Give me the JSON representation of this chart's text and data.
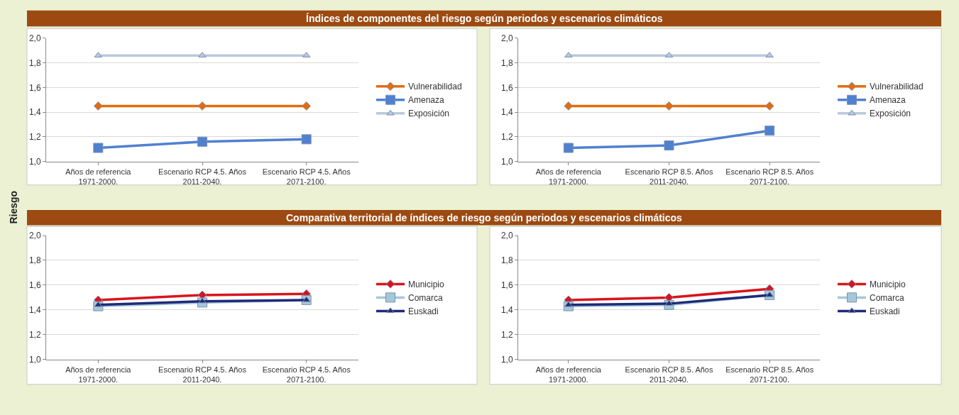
{
  "chart_data": [
    {
      "type": "line",
      "title": "Índices de componentes del riesgo según periodos y escenarios climáticos",
      "ylabel": "Riesgo",
      "categories": [
        "Años de referencia 1971-2000.",
        "Escenario RCP 4.5. Años 2011-2040.",
        "Escenario RCP 4.5. Años 2071-2100."
      ],
      "ylim": [
        1.0,
        2.0
      ],
      "yticks": [
        {
          "value": 1.0,
          "label": "1,0"
        },
        {
          "value": 1.2,
          "label": "1,2"
        },
        {
          "value": 1.4,
          "label": "1,4"
        },
        {
          "value": 1.6,
          "label": "1,6"
        },
        {
          "value": 1.8,
          "label": "1,8"
        },
        {
          "value": 2.0,
          "label": "2,0"
        }
      ],
      "grid": "y",
      "legend": "right",
      "series": [
        {
          "name": "Vulnerabilidad",
          "color": "#e46c0a",
          "marker": "diamond",
          "values": [
            1.45,
            1.45,
            1.45
          ]
        },
        {
          "name": "Amenaza",
          "color": "#4f81d0",
          "marker": "square",
          "values": [
            1.11,
            1.16,
            1.18
          ]
        },
        {
          "name": "Exposición",
          "color": "#b9c9dd",
          "marker": "triangle",
          "values": [
            1.86,
            1.86,
            1.86
          ]
        }
      ]
    },
    {
      "type": "line",
      "categories": [
        "Años de referencia 1971-2000.",
        "Escenario RCP 8.5. Años 2011-2040.",
        "Escenario RCP 8.5. Años 2071-2100."
      ],
      "ylim": [
        1.0,
        2.0
      ],
      "yticks": [
        {
          "value": 1.0,
          "label": "1,0"
        },
        {
          "value": 1.2,
          "label": "1,2"
        },
        {
          "value": 1.4,
          "label": "1,4"
        },
        {
          "value": 1.6,
          "label": "1,6"
        },
        {
          "value": 1.8,
          "label": "1,8"
        },
        {
          "value": 2.0,
          "label": "2,0"
        }
      ],
      "grid": "y",
      "legend": "right",
      "series": [
        {
          "name": "Vulnerabilidad",
          "color": "#e46c0a",
          "marker": "diamond",
          "values": [
            1.45,
            1.45,
            1.45
          ]
        },
        {
          "name": "Amenaza",
          "color": "#4f81d0",
          "marker": "square",
          "values": [
            1.11,
            1.13,
            1.25
          ]
        },
        {
          "name": "Exposición",
          "color": "#b9c9dd",
          "marker": "triangle",
          "values": [
            1.86,
            1.86,
            1.86
          ]
        }
      ]
    },
    {
      "type": "line",
      "title": "Comparativa territorial de índices de riesgo según periodos y escenarios climáticos",
      "categories": [
        "Años de referencia 1971-2000.",
        "Escenario RCP 4.5. Años 2011-2040.",
        "Escenario RCP 4.5. Años 2071-2100."
      ],
      "ylim": [
        1.0,
        2.0
      ],
      "yticks": [
        {
          "value": 1.0,
          "label": "1,0"
        },
        {
          "value": 1.2,
          "label": "1,2"
        },
        {
          "value": 1.4,
          "label": "1,4"
        },
        {
          "value": 1.6,
          "label": "1,6"
        },
        {
          "value": 1.8,
          "label": "1,8"
        },
        {
          "value": 2.0,
          "label": "2,0"
        }
      ],
      "grid": "y",
      "legend": "right",
      "series": [
        {
          "name": "Municipio",
          "color": "#d9141c",
          "marker": "diamond",
          "values": [
            1.48,
            1.52,
            1.53
          ]
        },
        {
          "name": "Comarca",
          "color": "#a5c8d8",
          "marker": "square",
          "values": [
            1.43,
            1.46,
            1.48
          ]
        },
        {
          "name": "Euskadi",
          "color": "#1f2a7a",
          "marker": "triangle",
          "values": [
            1.44,
            1.47,
            1.48
          ]
        }
      ]
    },
    {
      "type": "line",
      "categories": [
        "Años de referencia 1971-2000.",
        "Escenario RCP 8.5. Años 2011-2040.",
        "Escenario RCP 8.5. Años 2071-2100."
      ],
      "ylim": [
        1.0,
        2.0
      ],
      "yticks": [
        {
          "value": 1.0,
          "label": "1,0"
        },
        {
          "value": 1.2,
          "label": "1,2"
        },
        {
          "value": 1.4,
          "label": "1,4"
        },
        {
          "value": 1.6,
          "label": "1,6"
        },
        {
          "value": 1.8,
          "label": "1,8"
        },
        {
          "value": 2.0,
          "label": "2,0"
        }
      ],
      "grid": "y",
      "legend": "right",
      "series": [
        {
          "name": "Municipio",
          "color": "#d9141c",
          "marker": "diamond",
          "values": [
            1.48,
            1.5,
            1.57
          ]
        },
        {
          "name": "Comarca",
          "color": "#a5c8d8",
          "marker": "square",
          "values": [
            1.43,
            1.44,
            1.52
          ]
        },
        {
          "name": "Euskadi",
          "color": "#1f2a7a",
          "marker": "triangle",
          "values": [
            1.44,
            1.45,
            1.52
          ]
        }
      ]
    }
  ]
}
